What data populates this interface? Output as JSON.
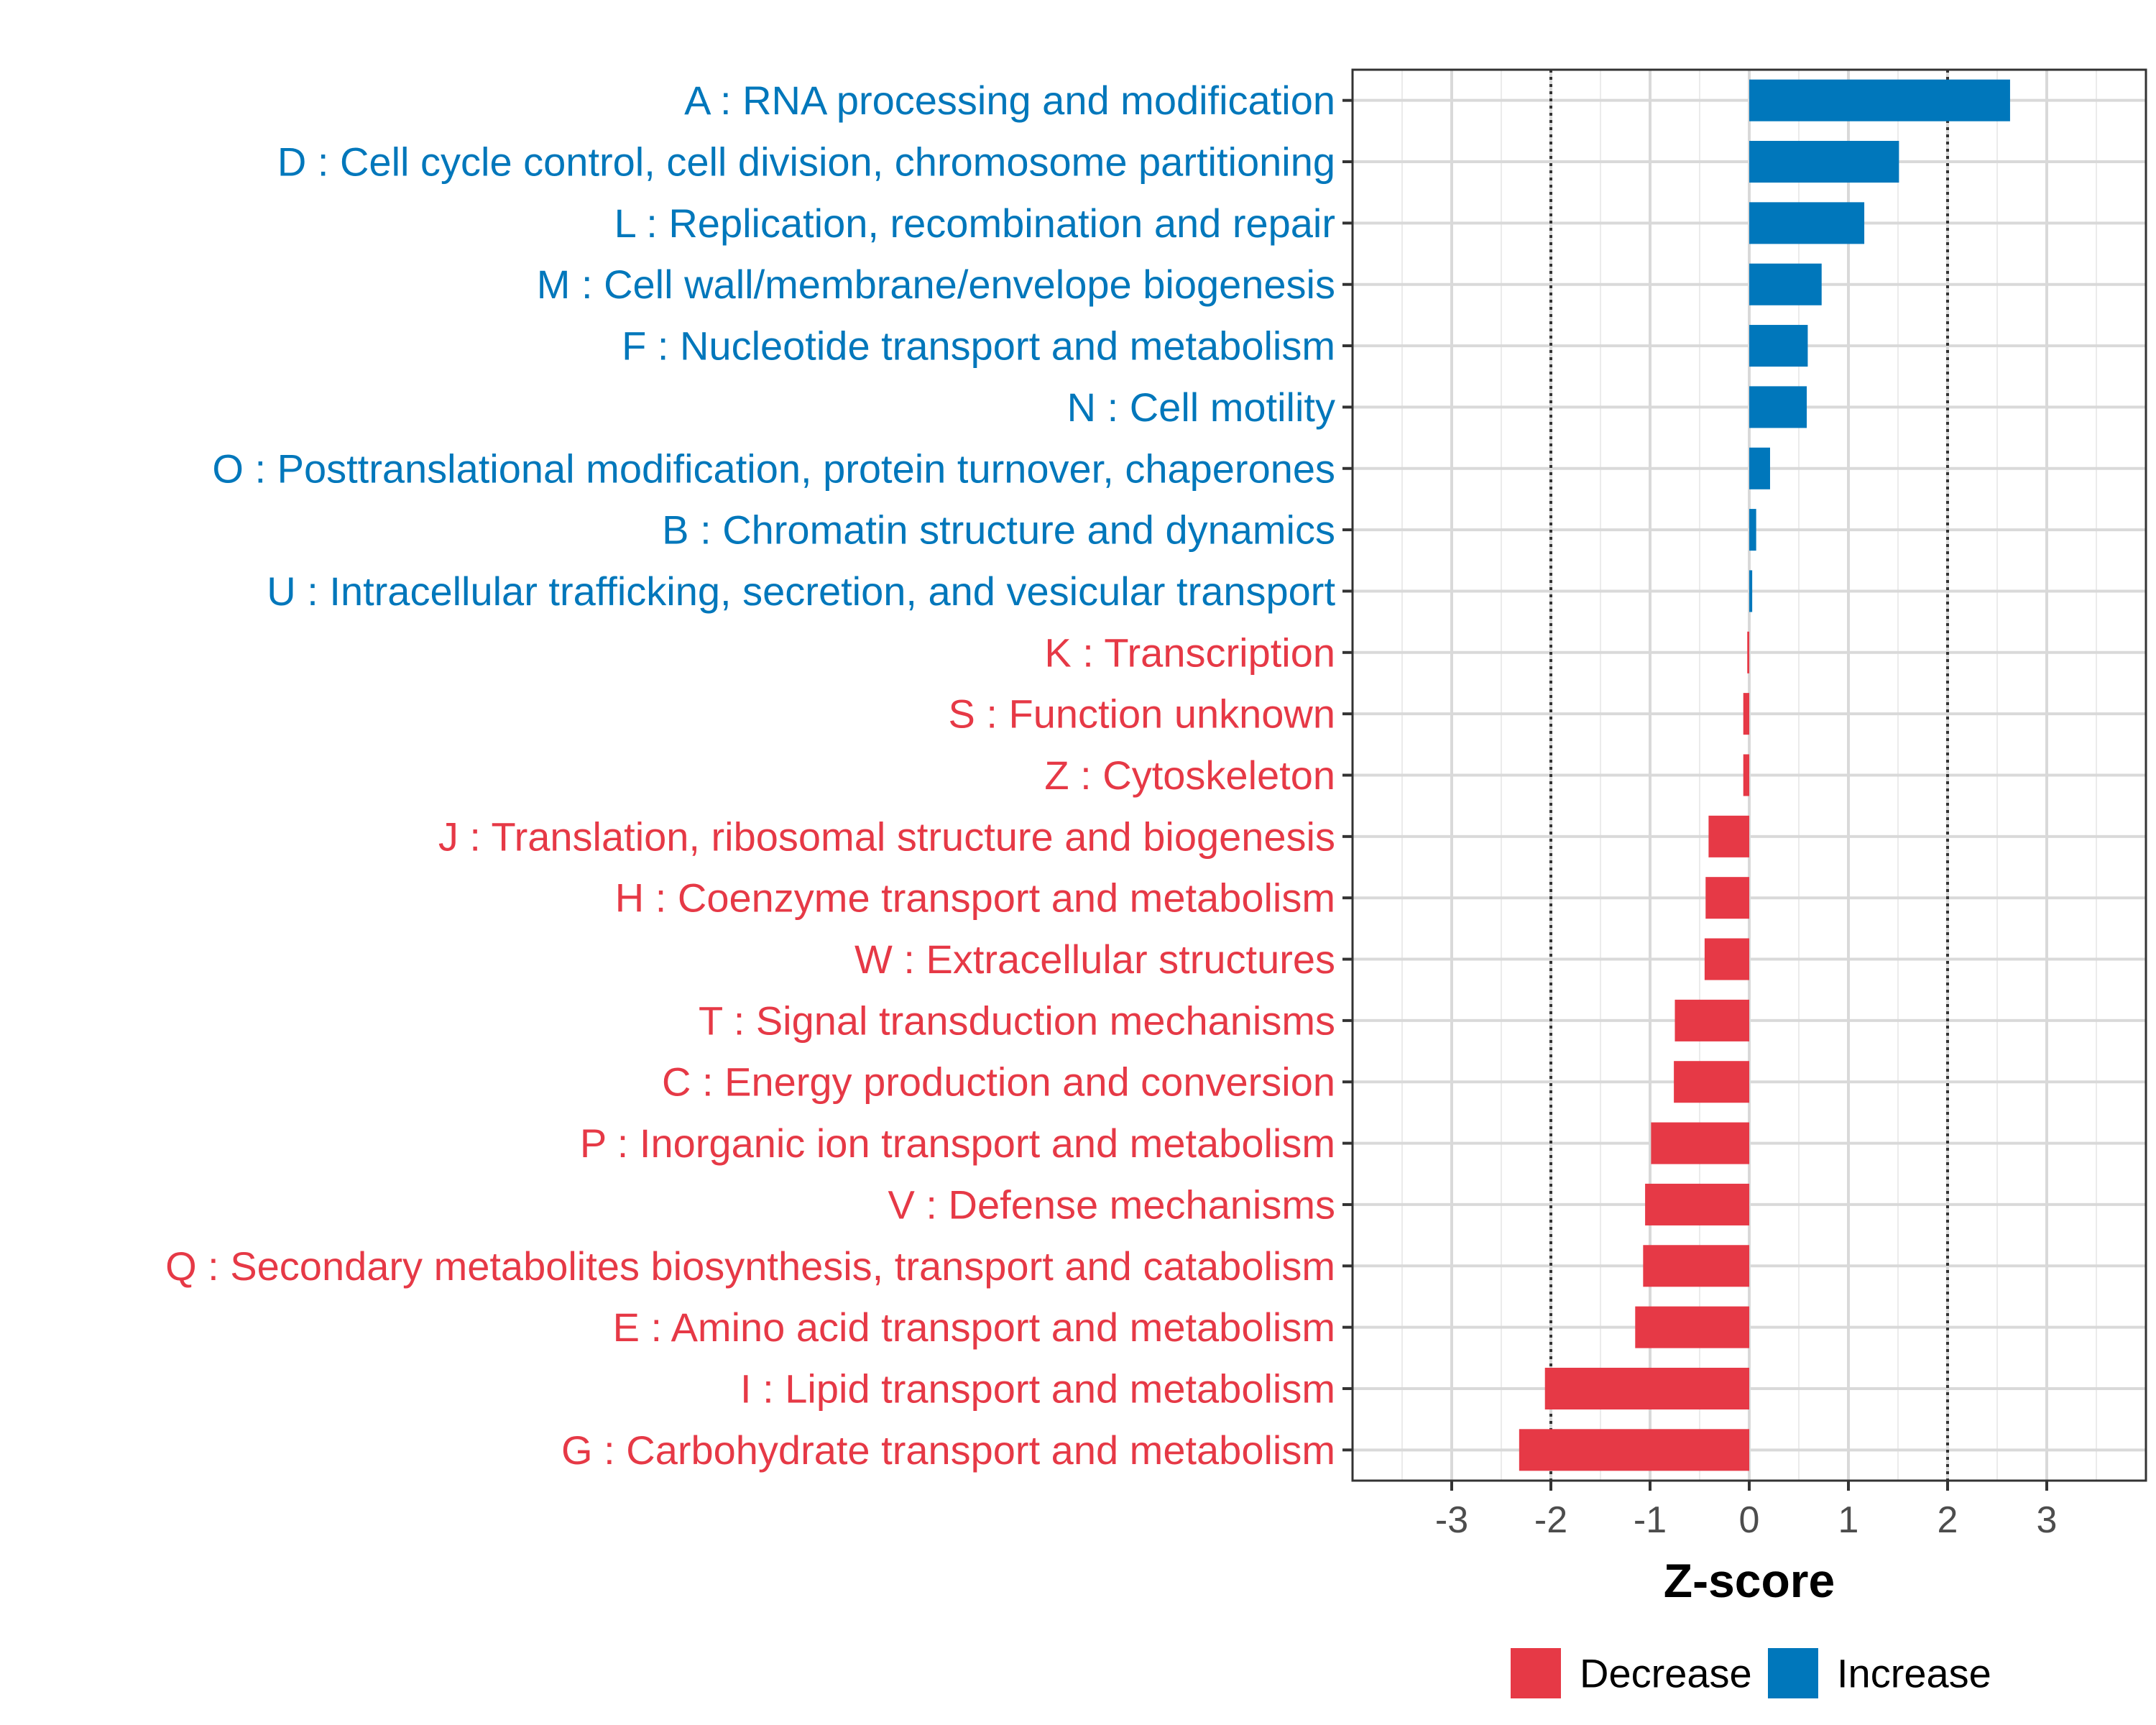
{
  "chart_data": {
    "type": "bar",
    "orientation": "horizontal",
    "xlabel": "Z-score",
    "ylabel": "",
    "xlim": [
      -4,
      4
    ],
    "xticks": [
      -3,
      -2,
      -1,
      0,
      1,
      2,
      3
    ],
    "reference_lines": [
      -2,
      2
    ],
    "grid": true,
    "legend_position": "bottom",
    "colors": {
      "Increase": "#0077bb",
      "Decrease": "#e63946"
    },
    "legend": [
      {
        "name": "Decrease",
        "color": "#e63946"
      },
      {
        "name": "Increase",
        "color": "#0077bb"
      }
    ],
    "categories": [
      {
        "label": "A : RNA processing and modification",
        "value": 2.63,
        "group": "Increase"
      },
      {
        "label": "D : Cell cycle control, cell division, chromosome partitioning",
        "value": 1.51,
        "group": "Increase"
      },
      {
        "label": "L : Replication, recombination and repair",
        "value": 1.16,
        "group": "Increase"
      },
      {
        "label": "M : Cell wall/membrane/envelope biogenesis",
        "value": 0.73,
        "group": "Increase"
      },
      {
        "label": "F : Nucleotide transport and metabolism",
        "value": 0.59,
        "group": "Increase"
      },
      {
        "label": "N : Cell motility",
        "value": 0.58,
        "group": "Increase"
      },
      {
        "label": "O : Posttranslational modification, protein turnover, chaperones",
        "value": 0.21,
        "group": "Increase"
      },
      {
        "label": "B : Chromatin structure and dynamics",
        "value": 0.07,
        "group": "Increase"
      },
      {
        "label": "U : Intracellular trafficking, secretion, and vesicular transport",
        "value": 0.03,
        "group": "Increase"
      },
      {
        "label": "K : Transcription",
        "value": -0.02,
        "group": "Decrease"
      },
      {
        "label": "S : Function unknown",
        "value": -0.06,
        "group": "Decrease"
      },
      {
        "label": "Z : Cytoskeleton",
        "value": -0.06,
        "group": "Decrease"
      },
      {
        "label": "J : Translation, ribosomal structure and biogenesis",
        "value": -0.41,
        "group": "Decrease"
      },
      {
        "label": "H : Coenzyme transport and metabolism",
        "value": -0.44,
        "group": "Decrease"
      },
      {
        "label": "W : Extracellular structures",
        "value": -0.45,
        "group": "Decrease"
      },
      {
        "label": "T : Signal transduction mechanisms",
        "value": -0.75,
        "group": "Decrease"
      },
      {
        "label": "C : Energy production and conversion",
        "value": -0.76,
        "group": "Decrease"
      },
      {
        "label": "P : Inorganic ion transport and metabolism",
        "value": -0.99,
        "group": "Decrease"
      },
      {
        "label": "V : Defense mechanisms",
        "value": -1.05,
        "group": "Decrease"
      },
      {
        "label": "Q : Secondary metabolites biosynthesis, transport and catabolism",
        "value": -1.07,
        "group": "Decrease"
      },
      {
        "label": "E : Amino acid transport and metabolism",
        "value": -1.15,
        "group": "Decrease"
      },
      {
        "label": "I : Lipid transport and metabolism",
        "value": -2.06,
        "group": "Decrease"
      },
      {
        "label": "G : Carbohydrate transport and metabolism",
        "value": -2.32,
        "group": "Decrease"
      }
    ]
  }
}
